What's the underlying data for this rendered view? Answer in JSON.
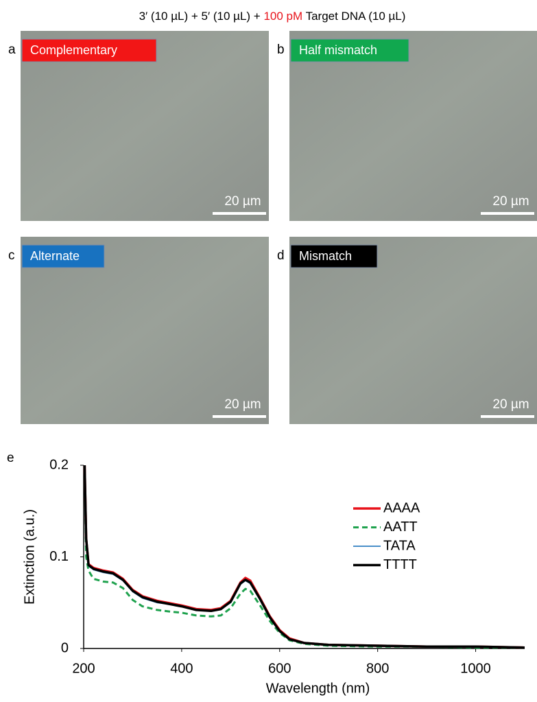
{
  "header": {
    "title_parts": [
      "3′ (10 µL) + 5′ (10 µL) + ",
      "100 pM",
      "  Target DNA (10 µL)"
    ]
  },
  "panels": [
    {
      "letter": "a",
      "label": "Complementary",
      "color": "#f21616",
      "scale_bar": "20 µm"
    },
    {
      "letter": "b",
      "label": "Half mismatch",
      "color": "#11a84f",
      "scale_bar": "20 µm"
    },
    {
      "letter": "c",
      "label": "Alternate",
      "color": "#1872c0",
      "scale_bar": "20 µm"
    },
    {
      "letter": "d",
      "label": "Mismatch",
      "color": "#000000",
      "scale_bar": "20 µm"
    }
  ],
  "chart_data": {
    "type": "line",
    "panel_letter": "e",
    "x_label": "Wavelength (nm)",
    "y_label": "Extinction  (a.u.)",
    "x": [
      202,
      205,
      210,
      220,
      240,
      260,
      280,
      300,
      320,
      350,
      380,
      400,
      430,
      460,
      480,
      500,
      520,
      530,
      540,
      560,
      580,
      600,
      620,
      650,
      700,
      800,
      900,
      1000,
      1100
    ],
    "series": [
      {
        "name": "AAAA",
        "color": "#e8141c",
        "line_style": "solid",
        "line_width": 3.5,
        "values": [
          0.2,
          0.12,
          0.092,
          0.088,
          0.085,
          0.083,
          0.076,
          0.064,
          0.057,
          0.052,
          0.049,
          0.047,
          0.043,
          0.042,
          0.044,
          0.052,
          0.072,
          0.077,
          0.074,
          0.055,
          0.035,
          0.02,
          0.011,
          0.006,
          0.004,
          0.003,
          0.002,
          0.002,
          0.001
        ]
      },
      {
        "name": "AATT",
        "color": "#1fa24e",
        "line_style": "dashed",
        "line_width": 3,
        "values": [
          0.2,
          0.1,
          0.085,
          0.076,
          0.073,
          0.072,
          0.066,
          0.053,
          0.046,
          0.042,
          0.04,
          0.039,
          0.036,
          0.035,
          0.036,
          0.044,
          0.06,
          0.065,
          0.063,
          0.047,
          0.03,
          0.017,
          0.009,
          0.005,
          0.003,
          0.002,
          0.002,
          0.001,
          0.001
        ]
      },
      {
        "name": "TATA",
        "color": "#2f7fc1",
        "line_style": "solid",
        "line_width": 1.8,
        "values": [
          0.2,
          0.12,
          0.09,
          0.086,
          0.083,
          0.081,
          0.074,
          0.062,
          0.055,
          0.05,
          0.048,
          0.046,
          0.042,
          0.041,
          0.043,
          0.05,
          0.07,
          0.074,
          0.071,
          0.053,
          0.034,
          0.019,
          0.01,
          0.006,
          0.004,
          0.003,
          0.002,
          0.002,
          0.001
        ]
      },
      {
        "name": "TTTT",
        "color": "#000000",
        "line_style": "solid",
        "line_width": 3.5,
        "values": [
          0.2,
          0.12,
          0.091,
          0.087,
          0.084,
          0.082,
          0.075,
          0.063,
          0.056,
          0.051,
          0.048,
          0.046,
          0.042,
          0.041,
          0.043,
          0.051,
          0.071,
          0.075,
          0.072,
          0.054,
          0.034,
          0.019,
          0.01,
          0.006,
          0.004,
          0.003,
          0.002,
          0.002,
          0.001
        ]
      }
    ],
    "xlim": [
      200,
      1100
    ],
    "xticks": [
      200,
      400,
      600,
      800,
      1000
    ],
    "ylim": [
      0,
      0.2
    ],
    "yticks": [
      0,
      0.1,
      0.2
    ],
    "legend": "upper right"
  }
}
